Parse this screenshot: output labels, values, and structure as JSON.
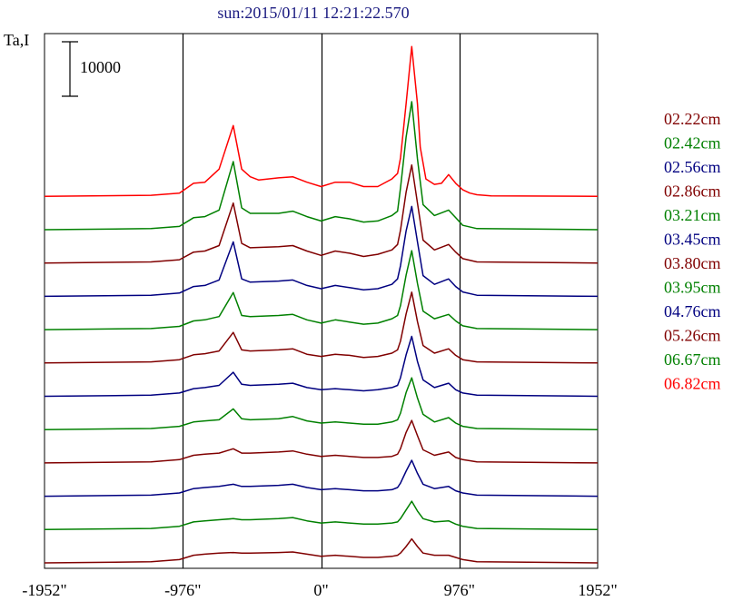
{
  "title": "sun:2015/01/11 12:21:22.570",
  "y_axis_label": "Ta,I",
  "scale_bar_label": "10000",
  "chart_data": {
    "type": "line",
    "title": "sun:2015/01/11 12:21:22.570",
    "ylabel": "Ta,I",
    "xlabel": "",
    "x_ticks": [
      "-1952\"",
      "-976\"",
      "0\"",
      "976\"",
      "1952\""
    ],
    "x_tick_values": [
      -1952,
      -976,
      0,
      976,
      1952
    ],
    "xlim": [
      -1952,
      1952
    ],
    "vertical_lines": [
      -976,
      0,
      976
    ],
    "scale_bar_value": 10000,
    "legend_position": "right",
    "grid": false,
    "series": [
      {
        "name": "06.82cm",
        "color": "#ff0000",
        "baseline": 0,
        "x": [
          -1952,
          -1200,
          -1000,
          -900,
          -820,
          -720,
          -620,
          -560,
          -500,
          -440,
          -300,
          -200,
          -100,
          0,
          100,
          200,
          300,
          400,
          500,
          540,
          560,
          600,
          640,
          680,
          700,
          740,
          800,
          850,
          900,
          950,
          1000,
          1050,
          1100,
          1200,
          1952
        ],
        "y": [
          0,
          200,
          600,
          2400,
          2600,
          5000,
          13000,
          5000,
          3600,
          3000,
          3400,
          3600,
          2600,
          1800,
          2600,
          2600,
          1800,
          1800,
          3200,
          4200,
          7000,
          17000,
          27500,
          17000,
          9000,
          3200,
          2200,
          2400,
          4000,
          2400,
          1200,
          600,
          300,
          100,
          0
        ]
      },
      {
        "name": "06.67cm",
        "color": "#008000",
        "baseline": 0,
        "x": [
          -1952,
          -1200,
          -1000,
          -900,
          -820,
          -720,
          -620,
          -560,
          -500,
          -300,
          -200,
          -100,
          0,
          100,
          200,
          300,
          400,
          500,
          540,
          560,
          600,
          640,
          680,
          720,
          800,
          900,
          950,
          1000,
          1100,
          1952
        ],
        "y": [
          0,
          200,
          600,
          2200,
          2400,
          3600,
          12500,
          4000,
          3000,
          3000,
          3400,
          2400,
          1600,
          2400,
          2000,
          1400,
          1600,
          2600,
          3400,
          7600,
          17000,
          23500,
          13000,
          4600,
          2600,
          3600,
          2200,
          800,
          200,
          0
        ]
      },
      {
        "name": "05.26cm",
        "color": "#800000",
        "baseline": 0,
        "x": [
          -1952,
          -1200,
          -1000,
          -900,
          -820,
          -720,
          -620,
          -560,
          -500,
          -300,
          -200,
          -100,
          0,
          100,
          200,
          300,
          400,
          500,
          540,
          560,
          600,
          640,
          680,
          720,
          800,
          900,
          950,
          1000,
          1100,
          1952
        ],
        "y": [
          0,
          200,
          600,
          2000,
          2200,
          3200,
          11000,
          3600,
          2800,
          3000,
          3200,
          2200,
          1400,
          2200,
          1800,
          1200,
          1600,
          2400,
          3400,
          6000,
          13000,
          18000,
          11000,
          4200,
          2400,
          3400,
          2000,
          800,
          200,
          0
        ]
      },
      {
        "name": "04.76cm",
        "color": "#000080",
        "baseline": 0,
        "x": [
          -1952,
          -1200,
          -1000,
          -900,
          -820,
          -720,
          -620,
          -560,
          -500,
          -300,
          -200,
          -100,
          0,
          100,
          200,
          300,
          400,
          500,
          540,
          560,
          600,
          640,
          680,
          720,
          800,
          900,
          950,
          1000,
          1100,
          1952
        ],
        "y": [
          0,
          200,
          600,
          1800,
          2000,
          3000,
          10000,
          3200,
          2600,
          2800,
          3000,
          2000,
          1400,
          2000,
          1600,
          1200,
          1400,
          2200,
          3200,
          5600,
          12000,
          16500,
          10000,
          3800,
          2200,
          3200,
          1800,
          800,
          200,
          0
        ]
      },
      {
        "name": "03.95cm",
        "color": "#008000",
        "baseline": 0,
        "x": [
          -1952,
          -1200,
          -1000,
          -900,
          -820,
          -720,
          -620,
          -560,
          -500,
          -300,
          -200,
          -100,
          0,
          100,
          200,
          300,
          400,
          500,
          540,
          560,
          600,
          640,
          680,
          720,
          800,
          900,
          950,
          1000,
          1100,
          1952
        ],
        "y": [
          0,
          200,
          600,
          1600,
          1800,
          2400,
          6800,
          2600,
          2400,
          2600,
          2800,
          1800,
          1200,
          1800,
          1400,
          1000,
          1200,
          2000,
          2600,
          4400,
          10000,
          14500,
          8500,
          3400,
          2000,
          2800,
          1600,
          700,
          200,
          0
        ]
      },
      {
        "name": "03.80cm",
        "color": "#800000",
        "baseline": 0,
        "x": [
          -1952,
          -1200,
          -1000,
          -900,
          -820,
          -720,
          -620,
          -560,
          -500,
          -300,
          -200,
          -100,
          0,
          100,
          200,
          300,
          400,
          500,
          540,
          560,
          600,
          640,
          680,
          720,
          800,
          900,
          950,
          1000,
          1100,
          1952
        ],
        "y": [
          0,
          200,
          600,
          1500,
          1700,
          2200,
          5600,
          2400,
          2200,
          2400,
          2600,
          1600,
          1200,
          1600,
          1400,
          1000,
          1200,
          1800,
          2400,
          4000,
          9000,
          13000,
          7600,
          3200,
          1800,
          2600,
          1400,
          600,
          200,
          0
        ]
      },
      {
        "name": "03.45cm",
        "color": "#000080",
        "baseline": 0,
        "x": [
          -1952,
          -1200,
          -1000,
          -900,
          -820,
          -720,
          -620,
          -560,
          -500,
          -300,
          -200,
          -100,
          0,
          100,
          200,
          300,
          400,
          500,
          540,
          560,
          600,
          640,
          680,
          720,
          800,
          900,
          950,
          1000,
          1100,
          1952
        ],
        "y": [
          0,
          200,
          600,
          1400,
          1600,
          2000,
          4400,
          2200,
          2000,
          2200,
          2400,
          1600,
          1200,
          1400,
          1200,
          1000,
          1200,
          1600,
          2000,
          3400,
          7600,
          11000,
          6400,
          3000,
          1600,
          2400,
          1200,
          600,
          200,
          0
        ]
      },
      {
        "name": "03.21cm",
        "color": "#008000",
        "baseline": 0,
        "x": [
          -1952,
          -1200,
          -1000,
          -900,
          -820,
          -720,
          -620,
          -560,
          -500,
          -300,
          -200,
          -100,
          0,
          100,
          200,
          300,
          400,
          500,
          540,
          560,
          600,
          640,
          680,
          720,
          800,
          900,
          950,
          1000,
          1100,
          1952
        ],
        "y": [
          0,
          200,
          600,
          1400,
          1600,
          1800,
          3800,
          2000,
          1800,
          2000,
          2400,
          1600,
          1200,
          1400,
          1200,
          1000,
          1000,
          1400,
          1800,
          3000,
          6800,
          9500,
          5800,
          2800,
          1400,
          2200,
          1200,
          600,
          200,
          0
        ]
      },
      {
        "name": "02.86cm",
        "color": "#800000",
        "baseline": 0,
        "x": [
          -1952,
          -1200,
          -1000,
          -900,
          -820,
          -720,
          -620,
          -560,
          -500,
          -300,
          -200,
          -100,
          0,
          100,
          200,
          300,
          400,
          500,
          540,
          560,
          600,
          640,
          680,
          720,
          800,
          900,
          950,
          1000,
          1100,
          1952
        ],
        "y": [
          0,
          200,
          600,
          1400,
          1600,
          1800,
          2600,
          1800,
          1800,
          2000,
          2200,
          1600,
          1200,
          1400,
          1200,
          1000,
          1000,
          1200,
          1600,
          2600,
          5600,
          7800,
          5000,
          2400,
          1400,
          2000,
          1000,
          600,
          200,
          0
        ]
      },
      {
        "name": "02.56cm",
        "color": "#000080",
        "baseline": 0,
        "x": [
          -1952,
          -1200,
          -1000,
          -900,
          -820,
          -720,
          -620,
          -560,
          -500,
          -300,
          -200,
          -100,
          0,
          100,
          200,
          300,
          400,
          500,
          540,
          560,
          600,
          640,
          680,
          720,
          800,
          900,
          950,
          1000,
          1100,
          1952
        ],
        "y": [
          0,
          200,
          600,
          1400,
          1600,
          1800,
          2200,
          1800,
          1800,
          2000,
          2200,
          1600,
          1200,
          1400,
          1200,
          1000,
          1000,
          1200,
          1600,
          2400,
          4600,
          6600,
          4200,
          2200,
          1400,
          1800,
          1000,
          600,
          200,
          0
        ]
      },
      {
        "name": "02.42cm",
        "color": "#008000",
        "baseline": 0,
        "x": [
          -1952,
          -1200,
          -1000,
          -900,
          -820,
          -720,
          -620,
          -560,
          -500,
          -300,
          -200,
          -100,
          0,
          100,
          200,
          300,
          400,
          500,
          540,
          560,
          600,
          640,
          680,
          720,
          800,
          900,
          950,
          1000,
          1100,
          1952
        ],
        "y": [
          0,
          200,
          600,
          1400,
          1600,
          1800,
          2000,
          1800,
          1800,
          2000,
          2200,
          1600,
          1200,
          1400,
          1200,
          1000,
          1000,
          1200,
          1400,
          2000,
          3600,
          5200,
          3400,
          2000,
          1400,
          1600,
          1000,
          600,
          200,
          0
        ]
      },
      {
        "name": "02.22cm",
        "color": "#800000",
        "baseline": 0,
        "x": [
          -1952,
          -1200,
          -1000,
          -900,
          -820,
          -720,
          -620,
          -560,
          -500,
          -300,
          -200,
          -100,
          0,
          100,
          200,
          300,
          400,
          500,
          540,
          560,
          600,
          640,
          680,
          720,
          800,
          900,
          950,
          1000,
          1100,
          1952
        ],
        "y": [
          0,
          200,
          600,
          1400,
          1600,
          1800,
          1900,
          1800,
          1800,
          1900,
          2000,
          1600,
          1200,
          1400,
          1200,
          1000,
          1000,
          1200,
          1400,
          1800,
          3000,
          4400,
          3000,
          1800,
          1400,
          1400,
          1000,
          600,
          200,
          0
        ]
      }
    ]
  }
}
